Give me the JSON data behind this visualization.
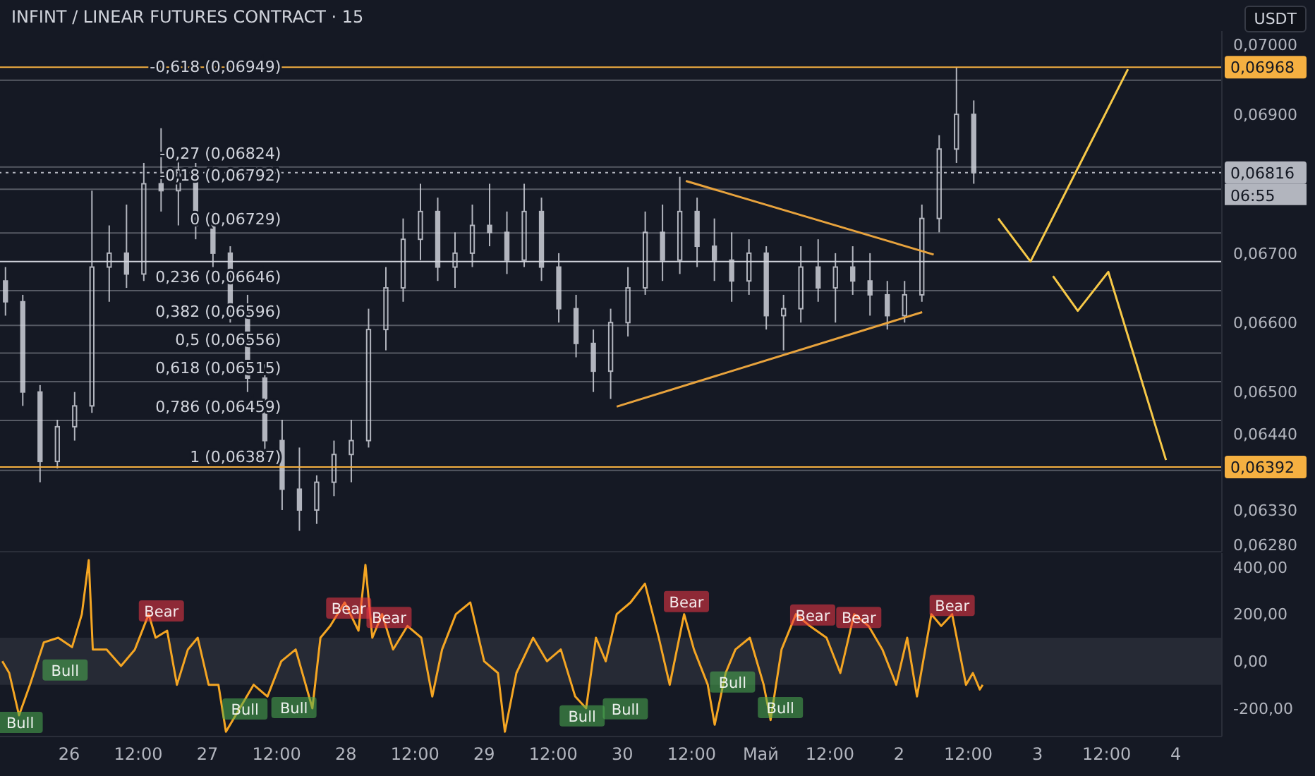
{
  "chart_data": [
    {
      "type": "candlestick",
      "title": "INFINT / LINEAR FUTURES CONTRACT · 15",
      "color": "#b2b5be",
      "x": [
        "--04-25T13:00",
        "--04-25T16:00",
        "--04-25T19:00",
        "--04-25T22:00",
        "--04-26T01:00",
        "--04-26T04:00",
        "--04-26T07:00",
        "--04-26T10:00",
        "--04-26T13:00",
        "--04-26T16:00",
        "--04-26T19:00",
        "--04-26T22:00",
        "--04-27T01:00",
        "--04-27T04:00",
        "--04-27T07:00",
        "--04-27T10:00",
        "--04-27T13:00",
        "--04-27T16:00",
        "--04-27T19:00",
        "--04-27T22:00",
        "--04-28T01:00",
        "--04-28T04:00",
        "--04-28T07:00",
        "--04-28T10:00",
        "--04-28T13:00",
        "--04-28T16:00",
        "--04-28T19:00",
        "--04-28T22:00",
        "--04-29T01:00",
        "--04-29T04:00",
        "--04-29T07:00",
        "--04-29T10:00",
        "--04-29T13:00",
        "--04-29T16:00",
        "--04-29T19:00",
        "--04-29T22:00",
        "--04-30T01:00",
        "--04-30T04:00",
        "--04-30T07:00",
        "--04-30T10:00",
        "--04-30T13:00",
        "--04-30T16:00",
        "--04-30T19:00",
        "--04-30T22:00",
        "--05-01T01:00",
        "--05-01T04:00",
        "--05-01T07:00",
        "--05-01T10:00",
        "--05-01T13:00",
        "--05-01T16:00",
        "--05-01T19:00",
        "--05-01T22:00",
        "--05-02T01:00",
        "--05-02T04:00",
        "--05-02T07:00",
        "--05-02T10:00",
        "--05-02T13:00"
      ],
      "ohlc": [
        [
          0.0666,
          0.0668,
          0.0661,
          0.0663
        ],
        [
          0.0663,
          0.0664,
          0.0648,
          0.065
        ],
        [
          0.065,
          0.0651,
          0.0637,
          0.064
        ],
        [
          0.064,
          0.0646,
          0.0639,
          0.0645
        ],
        [
          0.0645,
          0.065,
          0.0643,
          0.0648
        ],
        [
          0.0648,
          0.0679,
          0.0647,
          0.0668
        ],
        [
          0.0668,
          0.0674,
          0.0663,
          0.067
        ],
        [
          0.067,
          0.0677,
          0.0665,
          0.0667
        ],
        [
          0.0667,
          0.0683,
          0.0666,
          0.068
        ],
        [
          0.068,
          0.0688,
          0.0676,
          0.0679
        ],
        [
          0.0679,
          0.0684,
          0.0674,
          0.0682
        ],
        [
          0.0682,
          0.0683,
          0.0672,
          0.0674
        ],
        [
          0.0674,
          0.0676,
          0.0668,
          0.067
        ],
        [
          0.067,
          0.0671,
          0.066,
          0.0662
        ],
        [
          0.0662,
          0.0664,
          0.065,
          0.0652
        ],
        [
          0.0652,
          0.0654,
          0.0641,
          0.0643
        ],
        [
          0.0643,
          0.0646,
          0.0633,
          0.0636
        ],
        [
          0.0636,
          0.0642,
          0.063,
          0.0633
        ],
        [
          0.0633,
          0.0638,
          0.0631,
          0.0637
        ],
        [
          0.0637,
          0.0643,
          0.0635,
          0.0641
        ],
        [
          0.0641,
          0.0646,
          0.0637,
          0.0643
        ],
        [
          0.0643,
          0.0662,
          0.0642,
          0.0659
        ],
        [
          0.0659,
          0.0668,
          0.0656,
          0.0665
        ],
        [
          0.0665,
          0.0675,
          0.0663,
          0.0672
        ],
        [
          0.0672,
          0.068,
          0.0669,
          0.0676
        ],
        [
          0.0676,
          0.0678,
          0.0666,
          0.0668
        ],
        [
          0.0668,
          0.0673,
          0.0665,
          0.067
        ],
        [
          0.067,
          0.0677,
          0.0668,
          0.0674
        ],
        [
          0.0674,
          0.068,
          0.0671,
          0.0673
        ],
        [
          0.0673,
          0.0676,
          0.0667,
          0.0669
        ],
        [
          0.0669,
          0.068,
          0.0668,
          0.0676
        ],
        [
          0.0676,
          0.0678,
          0.0666,
          0.0668
        ],
        [
          0.0668,
          0.067,
          0.066,
          0.0662
        ],
        [
          0.0662,
          0.0664,
          0.0655,
          0.0657
        ],
        [
          0.0657,
          0.0659,
          0.065,
          0.0653
        ],
        [
          0.0653,
          0.0662,
          0.0649,
          0.066
        ],
        [
          0.066,
          0.0668,
          0.0658,
          0.0665
        ],
        [
          0.0665,
          0.0676,
          0.0664,
          0.0673
        ],
        [
          0.0673,
          0.0677,
          0.0666,
          0.0669
        ],
        [
          0.0669,
          0.0681,
          0.0667,
          0.0676
        ],
        [
          0.0676,
          0.0678,
          0.0668,
          0.0671
        ],
        [
          0.0671,
          0.0675,
          0.0666,
          0.0669
        ],
        [
          0.0669,
          0.0673,
          0.0663,
          0.0666
        ],
        [
          0.0666,
          0.0672,
          0.0664,
          0.067
        ],
        [
          0.067,
          0.0671,
          0.0659,
          0.0661
        ],
        [
          0.0661,
          0.0664,
          0.0656,
          0.0662
        ],
        [
          0.0662,
          0.0671,
          0.066,
          0.0668
        ],
        [
          0.0668,
          0.0672,
          0.0663,
          0.0665
        ],
        [
          0.0665,
          0.067,
          0.066,
          0.0668
        ],
        [
          0.0668,
          0.0671,
          0.0664,
          0.0666
        ],
        [
          0.0666,
          0.067,
          0.0661,
          0.0664
        ],
        [
          0.0664,
          0.0666,
          0.0659,
          0.0661
        ],
        [
          0.0661,
          0.0666,
          0.066,
          0.0664
        ],
        [
          0.0664,
          0.0677,
          0.0663,
          0.0675
        ],
        [
          0.0675,
          0.0687,
          0.0673,
          0.0685
        ],
        [
          0.0685,
          0.06968,
          0.0683,
          0.069
        ],
        [
          0.069,
          0.0692,
          0.068,
          0.06816
        ]
      ],
      "series": [
        {
          "type": "line",
          "color": "#e8a33d",
          "x": [
            "--04-30T11:00",
            "--05-02T06:00"
          ],
          "values": [
            0.06804,
            0.06698
          ]
        },
        {
          "type": "line",
          "color": "#e8a33d",
          "x": [
            "--04-29T23:00",
            "--05-02T04:00"
          ],
          "values": [
            0.06479,
            0.06615
          ]
        },
        {
          "type": "line",
          "color": "#f7c948",
          "x": [
            "--05-02T17:12",
            "--05-02T22:48",
            "--05-03T15:42"
          ],
          "values": [
            0.0675,
            0.06688,
            0.06965
          ]
        },
        {
          "type": "line",
          "color": "#f7c948",
          "x": [
            "--05-03T02:42",
            "--05-03T07:00",
            "--05-03T12:18",
            "--05-03T22:18"
          ],
          "values": [
            0.06667,
            0.06617,
            0.06673,
            0.06402
          ]
        }
      ],
      "xlim": [
        "--04-25T12:00",
        "--05-04T08:00"
      ],
      "ylim": [
        0.0627,
        0.0702
      ],
      "yticks": [
        {
          "value": 0.07,
          "label": "0,07000"
        },
        {
          "value": 0.069,
          "label": "0,06900"
        },
        {
          "value": 0.067,
          "label": "0,06700"
        },
        {
          "value": 0.066,
          "label": "0,06600"
        },
        {
          "value": 0.065,
          "label": "0,06500"
        },
        {
          "value": 0.0644,
          "label": "0,06440"
        },
        {
          "value": 0.0633,
          "label": "0,06330"
        },
        {
          "value": 0.0628,
          "label": "0,06280"
        }
      ],
      "tick_labels": "y",
      "ref_lines": [
        {
          "axis": "y",
          "value": 0.06688,
          "label": null,
          "color": "#d1d4dc",
          "line_style": "solid"
        },
        {
          "axis": "y",
          "value": 0.06816,
          "label": "0,06816",
          "color": "#b2b5be",
          "line_style": "dotted"
        },
        {
          "axis": "y",
          "value": 0.06968,
          "label": "0,06968",
          "color": "#f5b041",
          "line_style": "solid"
        },
        {
          "axis": "y",
          "value": 0.06392,
          "label": "0,06392",
          "color": "#f5b041",
          "line_style": "solid"
        },
        {
          "axis": "y",
          "value": 0.06949,
          "label": "-0,618 (0,06949)",
          "color": "#d1d4dc",
          "line_style": "solid"
        },
        {
          "axis": "y",
          "value": 0.06824,
          "label": "-0,27 (0,06824)",
          "color": "#d1d4dc",
          "line_style": "solid"
        },
        {
          "axis": "y",
          "value": 0.06792,
          "label": "-0,18 (0,06792)",
          "color": "#d1d4dc",
          "line_style": "solid"
        },
        {
          "axis": "y",
          "value": 0.06729,
          "label": "0 (0,06729)",
          "color": "#d1d4dc",
          "line_style": "solid"
        },
        {
          "axis": "y",
          "value": 0.06646,
          "label": "0,236 (0,06646)",
          "color": "#d1d4dc",
          "line_style": "solid"
        },
        {
          "axis": "y",
          "value": 0.06596,
          "label": "0,382 (0,06596)",
          "color": "#d1d4dc",
          "line_style": "solid"
        },
        {
          "axis": "y",
          "value": 0.06556,
          "label": "0,5 (0,06556)",
          "color": "#d1d4dc",
          "line_style": "solid"
        },
        {
          "axis": "y",
          "value": 0.06515,
          "label": "0,618 (0,06515)",
          "color": "#d1d4dc",
          "line_style": "solid"
        },
        {
          "axis": "y",
          "value": 0.06459,
          "label": "0,786 (0,06459)",
          "color": "#d1d4dc",
          "line_style": "solid"
        },
        {
          "axis": "y",
          "value": 0.06387,
          "label": "1 (0,06387)",
          "color": "#d1d4dc",
          "line_style": "solid"
        }
      ],
      "annotations": [
        "USDT",
        "06:55"
      ]
    },
    {
      "type": "line",
      "x": [
        "--04-25T12:24",
        "--04-25T13:36",
        "--04-25T15:18",
        "--04-25T17:12",
        "--04-25T19:36",
        "--04-25T22:06",
        "--04-26T00:30",
        "--04-26T02:12",
        "--04-26T03:24",
        "--04-26T04:06",
        "--04-26T06:30",
        "--04-26T09:00",
        "--04-26T11:24",
        "--04-26T13:48",
        "--04-26T15:00",
        "--04-26T17:00",
        "--04-26T18:42",
        "--04-26T20:36",
        "--04-26T22:18",
        "--04-27T00:12",
        "--04-27T01:54",
        "--04-27T03:12",
        "--04-27T05:36",
        "--04-27T08:00",
        "--04-27T10:24",
        "--04-27T12:48",
        "--04-27T15:18",
        "--04-27T18:12",
        "--04-27T19:36",
        "--04-27T21:18",
        "--04-27T23:48",
        "--04-28T02:12",
        "--04-28T03:24",
        "--04-28T04:36",
        "--04-28T06:18",
        "--04-28T08:12",
        "--04-28T10:42",
        "--04-28T13:06",
        "--04-28T15:00",
        "--04-28T16:42",
        "--04-28T19:06",
        "--04-28T21:36",
        "--04-29T00:00",
        "--04-29T02:24",
        "--04-29T03:36",
        "--04-29T05:36",
        "--04-29T08:30",
        "--04-29T10:54",
        "--04-29T13:18",
        "--04-29T15:48",
        "--04-29T17:42",
        "--04-29T19:24",
        "--04-29T21:06",
        "--04-29T23:00",
        "--04-30T01:24",
        "--04-30T03:54",
        "--04-30T06:18",
        "--04-30T08:12",
        "--04-30T10:42",
        "--04-30T12:24",
        "--04-30T14:48",
        "--04-30T16:00",
        "--04-30T17:54",
        "--04-30T19:36",
        "--04-30T22:06",
        "--05-01T00:30",
        "--05-01T01:42",
        "--05-01T03:36",
        "--05-01T06:06",
        "--05-01T08:30",
        "--05-01T11:24",
        "--05-01T13:48",
        "--05-01T16:12",
        "--05-01T18:42",
        "--05-01T21:06",
        "--05-01T23:30",
        "--05-02T01:24",
        "--05-02T03:06",
        "--05-02T05:36",
        "--05-02T07:18",
        "--05-02T09:12",
        "--05-02T11:36",
        "--05-02T12:48",
        "--05-02T14:00",
        "--05-02T14:30"
      ],
      "series": [
        {
          "color": "#f5a623",
          "values": [
            0,
            -50,
            -230,
            -100,
            80,
            100,
            60,
            200,
            430,
            50,
            50,
            -20,
            50,
            200,
            100,
            130,
            -100,
            50,
            100,
            -100,
            -100,
            -300,
            -200,
            -100,
            -150,
            0,
            50,
            -200,
            100,
            150,
            250,
            130,
            410,
            100,
            200,
            50,
            150,
            100,
            -150,
            50,
            200,
            250,
            0,
            -50,
            -300,
            -50,
            100,
            0,
            50,
            -150,
            -200,
            100,
            0,
            200,
            250,
            330,
            100,
            -100,
            200,
            50,
            -100,
            -270,
            -50,
            50,
            100,
            -100,
            -250,
            50,
            200,
            150,
            100,
            -50,
            200,
            150,
            50,
            -100,
            100,
            -150,
            200,
            150,
            200,
            -100,
            -50,
            -120,
            -100
          ]
        }
      ],
      "xlim": [
        "--04-25T12:00",
        "--05-04T08:00"
      ],
      "xticks": [
        {
          "value": "--04-26",
          "label": "26"
        },
        {
          "value": "--04-26T12:00",
          "label": "12:00"
        },
        {
          "value": "--04-27",
          "label": "27"
        },
        {
          "value": "--04-27T12:00",
          "label": "12:00"
        },
        {
          "value": "--04-28",
          "label": "28"
        },
        {
          "value": "--04-28T12:00",
          "label": "12:00"
        },
        {
          "value": "--04-29",
          "label": "29"
        },
        {
          "value": "--04-29T12:00",
          "label": "12:00"
        },
        {
          "value": "--04-30",
          "label": "30"
        },
        {
          "value": "--04-30T12:00",
          "label": "12:00"
        },
        {
          "value": "--05-01",
          "label": "Май"
        },
        {
          "value": "--05-01T12:00",
          "label": "12:00"
        },
        {
          "value": "--05-02",
          "label": "2"
        },
        {
          "value": "--05-02T12:00",
          "label": "12:00"
        },
        {
          "value": "--05-03",
          "label": "3"
        },
        {
          "value": "--05-03T12:00",
          "label": "12:00"
        },
        {
          "value": "--05-04",
          "label": "4"
        }
      ],
      "ylim": [
        -320,
        460
      ],
      "yticks": [
        {
          "value": 400,
          "label": "400,00"
        },
        {
          "value": 200,
          "label": "200,00"
        },
        {
          "value": 0,
          "label": "0,00"
        },
        {
          "value": -200,
          "label": "-200,00"
        }
      ],
      "bands": [
        {
          "axis": "y",
          "from": -100,
          "to": 100,
          "color": "#2a2e39"
        }
      ],
      "annotations": [
        {
          "text": "Bull",
          "x": "--04-25T15:30",
          "y": -263
        },
        {
          "text": "Bull",
          "x": "--04-25T23:18",
          "y": -40
        },
        {
          "text": "Bull",
          "x": "--04-27T06:30",
          "y": -206
        },
        {
          "text": "Bull",
          "x": "--04-27T15:00",
          "y": -200
        },
        {
          "text": "Bull",
          "x": "--04-29T17:00",
          "y": -235
        },
        {
          "text": "Bull",
          "x": "--04-30T00:30",
          "y": -205
        },
        {
          "text": "Bull",
          "x": "--04-30T19:06",
          "y": -91
        },
        {
          "text": "Bull",
          "x": "--05-01T03:24",
          "y": -200
        },
        {
          "text": "Bear",
          "x": "--04-26T16:00",
          "y": 211
        },
        {
          "text": "Bear",
          "x": "--04-28T00:30",
          "y": 223
        },
        {
          "text": "Bear",
          "x": "--04-28T07:30",
          "y": 183
        },
        {
          "text": "Bear",
          "x": "--04-30T11:06",
          "y": 251
        },
        {
          "text": "Bear",
          "x": "--05-01T09:00",
          "y": 194
        },
        {
          "text": "Bear",
          "x": "--05-01T17:00",
          "y": 183
        },
        {
          "text": "Bear",
          "x": "--05-02T09:12",
          "y": 234
        }
      ]
    }
  ]
}
